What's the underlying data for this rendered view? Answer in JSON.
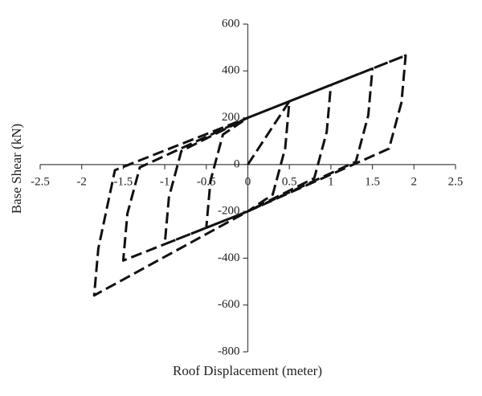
{
  "chart_data": {
    "type": "line",
    "x_label": "Roof Displacement (meter)",
    "y_label": "Base Shear (kN)",
    "series": [
      {
        "color": "#111111",
        "x": [
          0,
          0.5,
          0.45,
          0.3,
          0,
          -0.5,
          -0.45,
          -0.3,
          0,
          1,
          0.95,
          0.8,
          0,
          -1,
          -0.95,
          -0.8,
          0,
          1.5,
          1.45,
          1.3,
          0,
          -1.5,
          -1.45,
          -1.3,
          0,
          1.9,
          1.85,
          1.7,
          0,
          -1.85,
          -1.8,
          -1.6,
          0,
          1.9
        ],
        "values": [
          0,
          270,
          70,
          -128,
          -200,
          -270,
          -70,
          128,
          200,
          340,
          140,
          -58,
          -200,
          -340,
          -140,
          58,
          200,
          410,
          210,
          12,
          -200,
          -410,
          -210,
          -12,
          200,
          466,
          266,
          68,
          -200,
          -559,
          -359,
          -24,
          200,
          466
        ]
      }
    ],
    "xlim": [
      -2.5,
      2.5
    ],
    "xticks": [
      -2.5,
      -2,
      -1.5,
      -1,
      -0.5,
      0,
      0.5,
      1,
      1.5,
      2,
      2.5
    ],
    "ylim": [
      -800,
      600
    ],
    "yticks": [
      -800,
      -600,
      -400,
      -200,
      0,
      200,
      400,
      600
    ],
    "grid": false
  }
}
